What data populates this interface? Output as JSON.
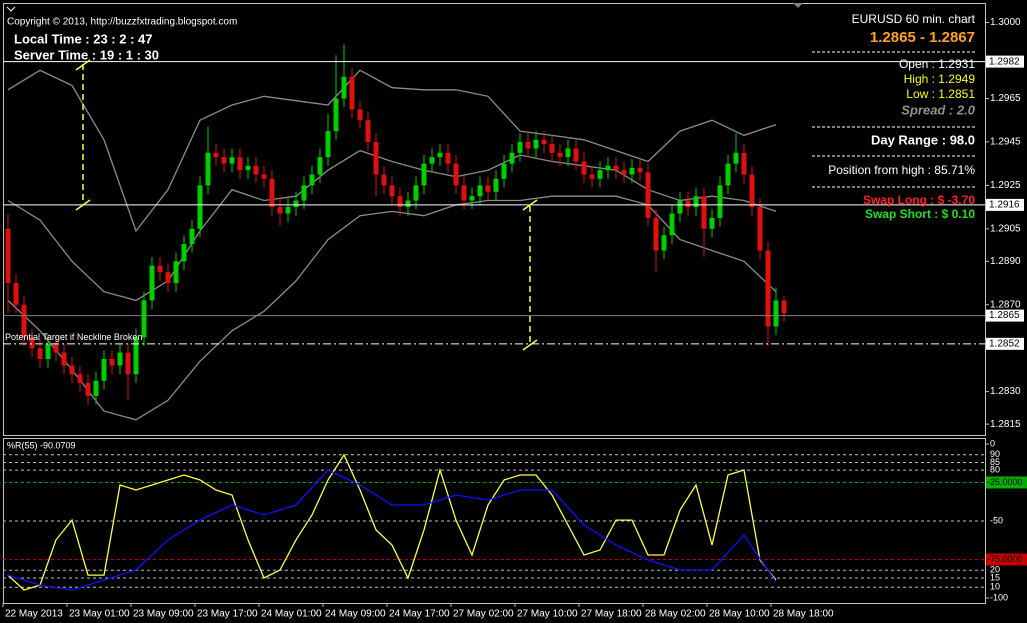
{
  "chart_data": [
    {
      "type": "candlestick",
      "annotation": "Potential Target if Neckline Broken",
      "up_color": "#00d000",
      "down_color": "#e01010",
      "open": [
        1.2905,
        1.288,
        1.287,
        1.2855,
        1.285,
        1.2845,
        1.2852,
        1.2848,
        1.2842,
        1.2838,
        1.2834,
        1.2828,
        1.2835,
        1.2845,
        1.2842,
        1.2848,
        1.2838,
        1.2855,
        1.2872,
        1.2888,
        1.2885,
        1.288,
        1.289,
        1.2898,
        1.2905,
        1.2925,
        1.294,
        1.2938,
        1.2935,
        1.2938,
        1.2932,
        1.2934,
        1.293,
        1.2928,
        1.2915,
        1.2912,
        1.2915,
        1.2918,
        1.2925,
        1.293,
        1.2938,
        1.295,
        1.2965,
        1.2975,
        1.296,
        1.2955,
        1.2945,
        1.293,
        1.2925,
        1.292,
        1.2915,
        1.2918,
        1.2925,
        1.2935,
        1.2938,
        1.294,
        1.2935,
        1.2925,
        1.2918,
        1.292,
        1.2925,
        1.2922,
        1.2928,
        1.2935,
        1.294,
        1.2945,
        1.2942,
        1.2946,
        1.2944,
        1.294,
        1.2938,
        1.2942,
        1.2936,
        1.293,
        1.2928,
        1.2932,
        1.2934,
        1.2932,
        1.293,
        1.2933,
        1.2931,
        1.291,
        1.2895,
        1.2902,
        1.2912,
        1.2918,
        1.2915,
        1.292,
        1.2905,
        1.291,
        1.2925,
        1.2935,
        1.294,
        1.293,
        1.2915,
        1.2895,
        1.286,
        1.2872
      ],
      "high": [
        1.2912,
        1.2884,
        1.2874,
        1.2859,
        1.2854,
        1.2856,
        1.2856,
        1.2852,
        1.2846,
        1.2842,
        1.2838,
        1.2839,
        1.2849,
        1.2849,
        1.2852,
        1.2852,
        1.2859,
        1.2876,
        1.2892,
        1.2892,
        1.2889,
        1.2894,
        1.2902,
        1.2909,
        1.2929,
        1.2952,
        1.2944,
        1.2942,
        1.2942,
        1.2942,
        1.2938,
        1.2938,
        1.2934,
        1.2932,
        1.2919,
        1.2919,
        1.2922,
        1.2929,
        1.2934,
        1.2942,
        1.2958,
        1.2985,
        1.299,
        1.2979,
        1.2964,
        1.2959,
        1.2949,
        1.2934,
        1.2929,
        1.2924,
        1.2922,
        1.2929,
        1.2939,
        1.2942,
        1.2944,
        1.2944,
        1.2939,
        1.2929,
        1.2924,
        1.2929,
        1.2929,
        1.2932,
        1.2939,
        1.2944,
        1.2949,
        1.2949,
        1.295,
        1.295,
        1.2948,
        1.2944,
        1.2946,
        1.2946,
        1.294,
        1.2934,
        1.2936,
        1.2938,
        1.2938,
        1.2936,
        1.2937,
        1.2937,
        1.2935,
        1.2914,
        1.2906,
        1.2916,
        1.2922,
        1.2922,
        1.2924,
        1.2924,
        1.2914,
        1.2929,
        1.2939,
        1.2949,
        1.2944,
        1.2934,
        1.2919,
        1.2899,
        1.2878,
        1.2874
      ],
      "low": [
        1.2866,
        1.2866,
        1.2851,
        1.2846,
        1.2841,
        1.2841,
        1.2844,
        1.2838,
        1.2834,
        1.283,
        1.2824,
        1.2824,
        1.2831,
        1.2838,
        1.2838,
        1.2826,
        1.2834,
        1.2851,
        1.2868,
        1.2881,
        1.2876,
        1.2876,
        1.2886,
        1.2894,
        1.2901,
        1.2921,
        1.2934,
        1.2931,
        1.2931,
        1.2928,
        1.2928,
        1.2926,
        1.2924,
        1.2911,
        1.2906,
        1.2908,
        1.2911,
        1.2914,
        1.2921,
        1.2926,
        1.2934,
        1.2946,
        1.2961,
        1.2956,
        1.2951,
        1.2941,
        1.292,
        1.2921,
        1.2916,
        1.2911,
        1.2911,
        1.2914,
        1.2921,
        1.2931,
        1.2934,
        1.2931,
        1.2921,
        1.2914,
        1.2914,
        1.2916,
        1.2918,
        1.2918,
        1.2924,
        1.2931,
        1.2936,
        1.2938,
        1.2938,
        1.294,
        1.2936,
        1.2934,
        1.2934,
        1.2932,
        1.2926,
        1.2924,
        1.2924,
        1.2928,
        1.2928,
        1.2926,
        1.2926,
        1.2927,
        1.2906,
        1.2885,
        1.2891,
        1.2898,
        1.2908,
        1.2911,
        1.2911,
        1.2892,
        1.2901,
        1.2906,
        1.2921,
        1.2931,
        1.2926,
        1.2911,
        1.2891,
        1.2851,
        1.2856,
        1.2862
      ],
      "close": [
        1.288,
        1.287,
        1.2855,
        1.285,
        1.2845,
        1.2852,
        1.2848,
        1.2842,
        1.2838,
        1.2834,
        1.2828,
        1.2835,
        1.2845,
        1.2842,
        1.2848,
        1.2838,
        1.2855,
        1.2872,
        1.2888,
        1.2885,
        1.288,
        1.289,
        1.2898,
        1.2905,
        1.2925,
        1.294,
        1.2938,
        1.2935,
        1.2938,
        1.2932,
        1.2934,
        1.293,
        1.2928,
        1.2915,
        1.2912,
        1.2915,
        1.2918,
        1.2925,
        1.293,
        1.2938,
        1.295,
        1.2965,
        1.2975,
        1.296,
        1.2955,
        1.2945,
        1.293,
        1.2925,
        1.292,
        1.2915,
        1.2918,
        1.2925,
        1.2935,
        1.2938,
        1.294,
        1.2935,
        1.2925,
        1.2918,
        1.292,
        1.2925,
        1.2922,
        1.2928,
        1.2935,
        1.294,
        1.2945,
        1.2942,
        1.2946,
        1.2944,
        1.294,
        1.2938,
        1.2942,
        1.2936,
        1.293,
        1.2928,
        1.2932,
        1.2934,
        1.2932,
        1.293,
        1.2933,
        1.2931,
        1.291,
        1.2895,
        1.2902,
        1.2912,
        1.2918,
        1.2915,
        1.292,
        1.2905,
        1.291,
        1.2925,
        1.2935,
        1.294,
        1.293,
        1.2915,
        1.2895,
        1.286,
        1.2872,
        1.2866
      ],
      "series": [
        {
          "color": "#8c8c8c",
          "values": [
            1.2969,
            1.2978,
            1.2971,
            1.2946,
            1.2904,
            1.2923,
            1.2955,
            1.2962,
            1.2966,
            1.2964,
            1.2962,
            1.2978,
            1.297,
            1.2969,
            1.2969,
            1.2966,
            1.295,
            1.2948,
            1.2946,
            1.2941,
            1.2936,
            1.295,
            1.2955,
            1.2948,
            1.2953
          ]
        },
        {
          "color": "#8c8c8c",
          "values": [
            1.2918,
            1.2909,
            1.289,
            1.2876,
            1.2872,
            1.2881,
            1.2904,
            1.2923,
            1.2918,
            1.292,
            1.2932,
            1.2941,
            1.2936,
            1.2932,
            1.2929,
            1.2932,
            1.2939,
            1.2936,
            1.2934,
            1.2932,
            1.2923,
            1.2918,
            1.292,
            1.2918,
            1.2913
          ]
        },
        {
          "color": "#8c8c8c",
          "values": [
            1.2872,
            1.2858,
            1.284,
            1.2821,
            1.2817,
            1.2826,
            1.2844,
            1.2858,
            1.2867,
            1.2881,
            1.29,
            1.2911,
            1.2913,
            1.2911,
            1.2916,
            1.2918,
            1.2918,
            1.292,
            1.292,
            1.292,
            1.2916,
            1.29,
            1.2895,
            1.289,
            1.2876
          ]
        }
      ],
      "price_lines": [
        {
          "value": 1.2982,
          "style": "solid",
          "color": "#ffffff"
        },
        {
          "value": 1.2916,
          "style": "solid",
          "color": "#ffffff"
        },
        {
          "value": 1.2865,
          "style": "solid",
          "color": "#808080"
        },
        {
          "value": 1.2852,
          "style": "dashdot",
          "color": "#ffffff"
        }
      ],
      "ylim": [
        1.281,
        1.3009
      ],
      "yticks": [
        {
          "value": 1.3,
          "label": "1.3000"
        },
        1.2965,
        1.2945,
        1.2925,
        1.2905,
        {
          "value": 1.289,
          "label": "1.2890"
        },
        {
          "value": 1.287,
          "label": "1.2870"
        },
        {
          "value": 1.283,
          "label": "1.2830"
        },
        1.2815
      ]
    },
    {
      "type": "line",
      "title": "%R(55) -90.0709",
      "series": [
        {
          "color": "#ffff40",
          "values": [
            -85.1,
            -94.8,
            -91.6,
            -62.3,
            -49.4,
            -85.1,
            -85.1,
            -26.6,
            -29.9,
            -26.6,
            -23.4,
            -20.1,
            -23.4,
            -29.9,
            -33.1,
            -62.3,
            -87.0,
            -81.8,
            -62.3,
            -46.1,
            -23.4,
            -7.1,
            -29.9,
            -55.8,
            -65.6,
            -87.0,
            -55.8,
            -16.9,
            -49.4,
            -72.1,
            -39.6,
            -23.4,
            -20.1,
            -20.1,
            -33.1,
            -52.6,
            -72.1,
            -68.8,
            -49.4,
            -49.4,
            -72.1,
            -72.1,
            -42.9,
            -26.6,
            -65.6,
            -20.1,
            -16.9,
            -75.3,
            -88.3
          ]
        },
        {
          "color": "#1010ff",
          "values": [
            -85.1,
            -91.6,
            -94.8,
            -88.3,
            -81.8,
            -62.3,
            -49.4,
            -39.6,
            -46.1,
            -39.6,
            -16.9,
            -26.6,
            -39.6,
            -39.6,
            -33.1,
            -36.4,
            -29.9,
            -29.9,
            -52.6,
            -65.6,
            -75.3,
            -81.8,
            -81.8,
            -59.1,
            -89.6
          ]
        }
      ],
      "boxed_levels": [
        {
          "value": -25,
          "label": "-25.0000",
          "color": "#00b000"
        },
        {
          "value": -75,
          "label": "-75.0000",
          "color": "#c80000"
        }
      ],
      "ylim": [
        -100,
        0
      ],
      "yticks": [
        0,
        {
          "value": -7,
          "label": "90"
        },
        {
          "value": -12,
          "label": "85"
        },
        {
          "value": -17,
          "label": "80"
        },
        -50,
        {
          "value": -82,
          "label": "20"
        },
        {
          "value": -87,
          "label": "15"
        },
        {
          "value": -93,
          "label": "10"
        },
        -100
      ],
      "x_labels": [
        "22 May 2013",
        "23 May 01:00",
        "23 May 09:00",
        "23 May 17:00",
        "24 May 01:00",
        "24 May 09:00",
        "24 May 17:00",
        "27 May 02:00",
        "27 May 10:00",
        "27 May 18:00",
        "28 May 02:00",
        "28 May 10:00",
        "28 May 18:00"
      ]
    }
  ],
  "overlay": {
    "copyright": "Copyright © 2013, http://buzzfxtrading.blogspot.com",
    "local_time": "Local Time : 23 : 2 : 47",
    "server_time": "Server Time : 19 : 1 : 30",
    "symbol": "EURUSD 60 min. chart",
    "bid_ask": "1.2865 - 1.2867",
    "open": "Open : 1.2931",
    "high": "High : 1.2949",
    "low": "Low : 1.2851",
    "spread": "Spread : 2.0",
    "day_range": "Day Range : 98.0",
    "position_from_high": "Position from high : 85.71%",
    "swap_long": "Swap Long : $ -3.70",
    "swap_short": "Swap Short : $ 0.10"
  }
}
